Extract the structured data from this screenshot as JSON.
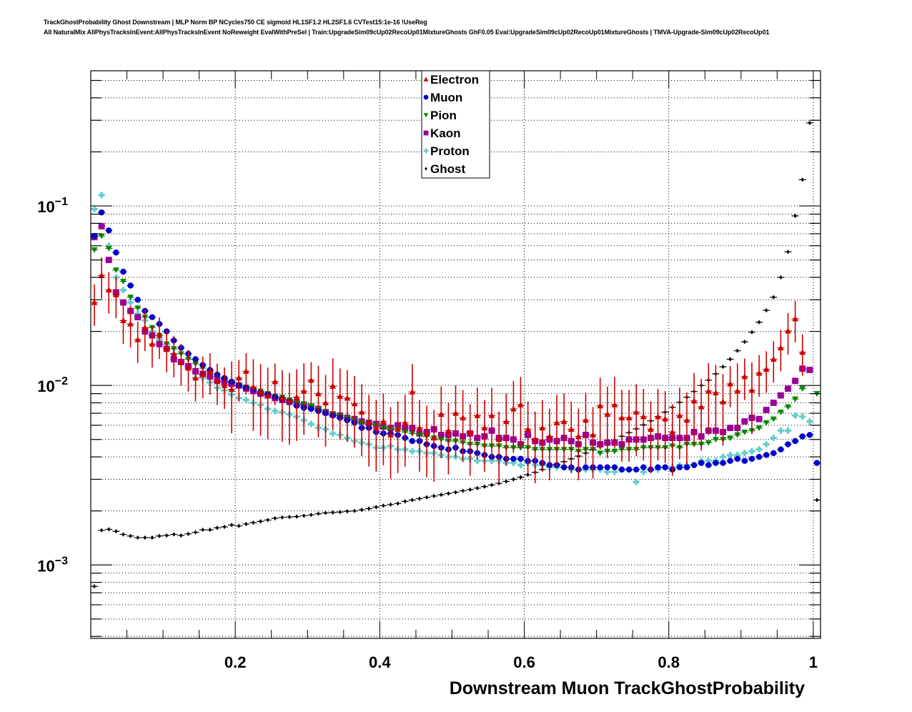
{
  "header": {
    "title_line1": "TrackGhostProbability Ghost Downstream | MLP Norm BP NCycles750 CE sigmoid HL1SF1.2 HL2SF1.6 CVTest15:1e-16 !UseReg",
    "title_line2": "All NaturalMix AllPhysTracksInEvent:AllPhysTracksInEvent NoReweight EvalWithPreSel | Train:UpgradeSim09cUp02RecoUp01MixtureGhosts GhF0.05 Eval:UpgradeSim09cUp02RecoUp01MixtureGhosts | TMVA-Upgrade-Sim09cUp02RecoUp01"
  },
  "chart_data": {
    "type": "scatter",
    "title": "TrackGhostProbability Ghost Downstream",
    "xlabel": "Downstream Muon TrackGhostProbability",
    "ylabel": "",
    "xlim": [
      0.0,
      1.01
    ],
    "ylim": [
      0.00039,
      0.566
    ],
    "yscale": "log",
    "grid": true,
    "legend_position": "top-center",
    "x_ticks": [
      {
        "value": 0.2,
        "label": "0.2"
      },
      {
        "value": 0.4,
        "label": "0.4"
      },
      {
        "value": 0.6,
        "label": "0.6"
      },
      {
        "value": 0.8,
        "label": "0.8"
      },
      {
        "value": 1.0,
        "label": "1"
      }
    ],
    "y_ticks": [
      {
        "value": 0.1,
        "base": "10",
        "exp": "−1"
      },
      {
        "value": 0.01,
        "base": "10",
        "exp": "−2"
      },
      {
        "value": 0.001,
        "base": "10",
        "exp": "−3"
      }
    ],
    "bin_start": 0.005,
    "bin_width": 0.01,
    "series": [
      {
        "name": "Electron",
        "color": "#cc0000",
        "marker": "triangle-up",
        "errors": true,
        "values": [
          0.029,
          0.041,
          0.034,
          0.032,
          0.023,
          0.022,
          0.018,
          0.021,
          0.017,
          0.019,
          0.016,
          0.015,
          0.0135,
          0.0125,
          0.011,
          0.0115,
          0.012,
          0.0105,
          0.01,
          0.0095,
          0.011,
          0.012,
          0.0098,
          0.0092,
          0.0088,
          0.0105,
          0.0085,
          0.0082,
          0.0086,
          0.0093,
          0.0107,
          0.009,
          0.008,
          0.0099,
          0.0087,
          0.0085,
          0.0079,
          0.0071,
          0.0062,
          0.0058,
          0.0063,
          0.0053,
          0.0057,
          0.0062,
          0.0092,
          0.0058,
          0.0054,
          0.0051,
          0.0069,
          0.0056,
          0.007,
          0.0066,
          0.0055,
          0.0068,
          0.0058,
          0.0068,
          0.005,
          0.0063,
          0.0074,
          0.0078,
          0.0057,
          0.005,
          0.0058,
          0.0052,
          0.0062,
          0.0063,
          0.0057,
          0.0052,
          0.0064,
          0.0053,
          0.0077,
          0.0069,
          0.0078,
          0.0066,
          0.0066,
          0.0071,
          0.0067,
          0.0057,
          0.0067,
          0.0065,
          0.0055,
          0.0068,
          0.0064,
          0.0082,
          0.0076,
          0.0093,
          0.0091,
          0.0081,
          0.0102,
          0.0093,
          0.0112,
          0.0094,
          0.0117,
          0.0123,
          0.014,
          0.0162,
          0.0201,
          0.0235,
          0.0153,
          null,
          null
        ]
      },
      {
        "name": "Muon",
        "color": "#0000cc",
        "marker": "circle",
        "errors": false,
        "values": [
          0.068,
          0.092,
          0.073,
          0.055,
          0.043,
          0.036,
          0.03,
          0.026,
          0.024,
          0.022,
          0.02,
          0.0178,
          0.0162,
          0.015,
          0.014,
          0.013,
          0.0122,
          0.0115,
          0.011,
          0.0105,
          0.01,
          0.0097,
          0.0095,
          0.0091,
          0.0089,
          0.0086,
          0.0084,
          0.0081,
          0.0077,
          0.0075,
          0.0074,
          0.0072,
          0.007,
          0.0068,
          0.0066,
          0.0064,
          0.0062,
          0.0058,
          0.0058,
          0.0055,
          0.0054,
          0.0054,
          0.0053,
          0.0051,
          0.0049,
          0.0049,
          0.0047,
          0.0046,
          0.0045,
          0.0044,
          0.0045,
          0.0043,
          0.0043,
          0.0042,
          0.0041,
          0.004,
          0.004,
          0.0039,
          0.0039,
          0.0039,
          0.0038,
          0.0038,
          0.0037,
          0.0036,
          0.0036,
          0.0035,
          0.0035,
          0.0034,
          0.0035,
          0.0035,
          0.0035,
          0.0035,
          0.0035,
          0.0034,
          0.0034,
          0.0034,
          0.0035,
          0.0034,
          0.0035,
          0.0035,
          0.0034,
          0.0035,
          0.0035,
          0.0036,
          0.0037,
          0.0036,
          0.0037,
          0.0037,
          0.0038,
          0.0039,
          0.0038,
          0.0039,
          0.004,
          0.0041,
          0.0042,
          0.0044,
          0.0047,
          0.0049,
          0.0052,
          0.0053,
          0.0037
        ]
      },
      {
        "name": "Pion",
        "color": "#008800",
        "marker": "triangle-down",
        "errors": false,
        "values": [
          0.057,
          0.068,
          0.058,
          0.044,
          0.038,
          0.031,
          0.027,
          0.024,
          0.021,
          0.019,
          0.017,
          0.016,
          0.015,
          0.014,
          0.0132,
          0.0125,
          0.0118,
          0.0112,
          0.0108,
          0.0104,
          0.01,
          0.0098,
          0.0095,
          0.0093,
          0.009,
          0.0087,
          0.0086,
          0.0083,
          0.0081,
          0.0079,
          0.0077,
          0.0074,
          0.0071,
          0.0069,
          0.0068,
          0.0066,
          0.0064,
          0.0062,
          0.0061,
          0.006,
          0.0058,
          0.0057,
          0.0057,
          0.0055,
          0.0054,
          0.0053,
          0.0052,
          0.0051,
          0.005,
          0.0049,
          0.0049,
          0.0048,
          0.0047,
          0.0047,
          0.0046,
          0.0046,
          0.0046,
          0.0045,
          0.0045,
          0.0045,
          0.0045,
          0.0044,
          0.0044,
          0.0044,
          0.0044,
          0.0044,
          0.0044,
          0.0043,
          0.0044,
          0.0044,
          0.0042,
          0.0043,
          0.0043,
          0.0044,
          0.0044,
          0.0044,
          0.0045,
          0.0045,
          0.0045,
          0.0045,
          0.0046,
          0.0045,
          0.0047,
          0.0047,
          0.0047,
          0.0048,
          0.005,
          0.005,
          0.0051,
          0.0053,
          0.0055,
          0.0056,
          0.0058,
          0.0062,
          0.0065,
          0.0071,
          0.0076,
          0.0084,
          0.0096,
          null,
          0.009
        ]
      },
      {
        "name": "Kaon",
        "color": "#990099",
        "marker": "square",
        "errors": false,
        "values": [
          0.067,
          0.077,
          0.05,
          0.033,
          0.029,
          0.026,
          0.024,
          0.02,
          0.019,
          0.017,
          0.016,
          0.014,
          0.0135,
          0.0128,
          0.012,
          0.0116,
          0.0112,
          0.0107,
          0.0105,
          0.0102,
          0.01,
          0.0096,
          0.0093,
          0.009,
          0.0088,
          0.0085,
          0.0083,
          0.0081,
          0.008,
          0.0078,
          0.0076,
          0.0074,
          0.0071,
          0.0069,
          0.0068,
          0.0066,
          0.0065,
          0.0063,
          0.0062,
          0.0061,
          0.0059,
          0.0058,
          0.006,
          0.0058,
          0.0058,
          0.0054,
          0.0055,
          0.0057,
          0.0053,
          0.0053,
          0.0054,
          0.0052,
          0.0054,
          0.0051,
          0.0052,
          0.0056,
          0.0051,
          0.0051,
          0.005,
          0.0047,
          0.0053,
          0.0049,
          0.0048,
          0.005,
          0.0049,
          0.0051,
          0.0049,
          0.0047,
          0.0053,
          0.0048,
          0.0047,
          0.0048,
          0.0048,
          0.0047,
          0.005,
          0.005,
          0.005,
          0.0051,
          0.0052,
          0.0051,
          0.0051,
          0.0051,
          0.0051,
          0.0055,
          0.0052,
          0.0056,
          0.0056,
          0.0055,
          0.0058,
          0.0058,
          0.0063,
          0.0066,
          0.0065,
          0.0073,
          0.008,
          0.0088,
          0.0096,
          0.0106,
          0.0124,
          0.0122,
          null
        ]
      },
      {
        "name": "Proton",
        "color": "#66cccc",
        "marker": "cross",
        "errors": false,
        "values": [
          0.096,
          0.115,
          0.06,
          0.04,
          0.034,
          0.029,
          0.025,
          0.023,
          0.02,
          0.018,
          0.016,
          0.015,
          0.0135,
          0.0125,
          0.0117,
          0.011,
          0.0104,
          0.0097,
          0.0094,
          0.0089,
          0.0085,
          0.0083,
          0.008,
          0.0078,
          0.0074,
          0.0072,
          0.0071,
          0.0069,
          0.0067,
          0.0064,
          0.0061,
          0.0058,
          0.0057,
          0.0054,
          0.0053,
          0.0051,
          0.0049,
          0.0048,
          0.0047,
          0.0045,
          0.0045,
          0.0046,
          0.0044,
          0.0044,
          0.0043,
          0.0043,
          0.0042,
          0.0042,
          0.0041,
          0.004,
          0.004,
          0.0039,
          0.0039,
          0.0038,
          0.0038,
          0.0038,
          0.0038,
          0.0037,
          0.0037,
          0.0036,
          0.0037,
          0.0036,
          0.0036,
          0.0035,
          0.0035,
          0.0035,
          0.0034,
          0.0034,
          0.0034,
          0.0034,
          0.0034,
          0.0033,
          0.0033,
          0.0034,
          0.0034,
          0.0029,
          0.0033,
          0.0034,
          0.0034,
          0.0035,
          0.0035,
          0.0036,
          0.0036,
          0.0036,
          0.0038,
          0.0038,
          0.0038,
          0.004,
          0.0041,
          0.0041,
          0.0042,
          0.0043,
          0.0044,
          0.0047,
          0.0051,
          0.0056,
          0.0056,
          0.0068,
          0.0067,
          0.0063,
          null
        ]
      },
      {
        "name": "Ghost",
        "color": "#000000",
        "marker": "diamond",
        "errors": false,
        "values": [
          0.00076,
          0.00156,
          0.00158,
          0.00154,
          0.00148,
          0.00145,
          0.00142,
          0.00142,
          0.00142,
          0.00145,
          0.00146,
          0.00148,
          0.00146,
          0.00149,
          0.00152,
          0.00157,
          0.00157,
          0.00161,
          0.00163,
          0.00167,
          0.00165,
          0.00169,
          0.00172,
          0.00175,
          0.00178,
          0.00182,
          0.00184,
          0.00185,
          0.00186,
          0.00188,
          0.0019,
          0.00193,
          0.00195,
          0.00196,
          0.00197,
          0.00199,
          0.002,
          0.00203,
          0.00206,
          0.0021,
          0.00214,
          0.00217,
          0.0022,
          0.00226,
          0.0023,
          0.00234,
          0.00238,
          0.00242,
          0.00246,
          0.0025,
          0.00254,
          0.00259,
          0.00263,
          0.00268,
          0.00273,
          0.00279,
          0.00285,
          0.00292,
          0.003,
          0.00308,
          0.00318,
          0.00328,
          0.0034,
          0.00352,
          0.00364,
          0.00376,
          0.0039,
          0.00404,
          0.0042,
          0.00437,
          0.00455,
          0.00475,
          0.00497,
          0.00521,
          0.00546,
          0.00573,
          0.00603,
          0.00635,
          0.0067,
          0.0071,
          0.00755,
          0.00805,
          0.0086,
          0.00925,
          0.01,
          0.0107,
          0.0116,
          0.0127,
          0.014,
          0.0156,
          0.0175,
          0.0198,
          0.0225,
          0.0262,
          0.031,
          0.04,
          0.0555,
          0.088,
          0.14,
          0.29,
          0.0023
        ]
      }
    ]
  },
  "legend": {
    "entries": [
      {
        "label": "Electron",
        "marker": "triangle-up",
        "color": "#cc0000"
      },
      {
        "label": "Muon",
        "marker": "circle",
        "color": "#0000cc"
      },
      {
        "label": "Pion",
        "marker": "triangle-down",
        "color": "#008800"
      },
      {
        "label": "Kaon",
        "marker": "square",
        "color": "#990099"
      },
      {
        "label": "Proton",
        "marker": "cross",
        "color": "#66cccc"
      },
      {
        "label": "Ghost",
        "marker": "diamond",
        "color": "#000000"
      }
    ]
  }
}
